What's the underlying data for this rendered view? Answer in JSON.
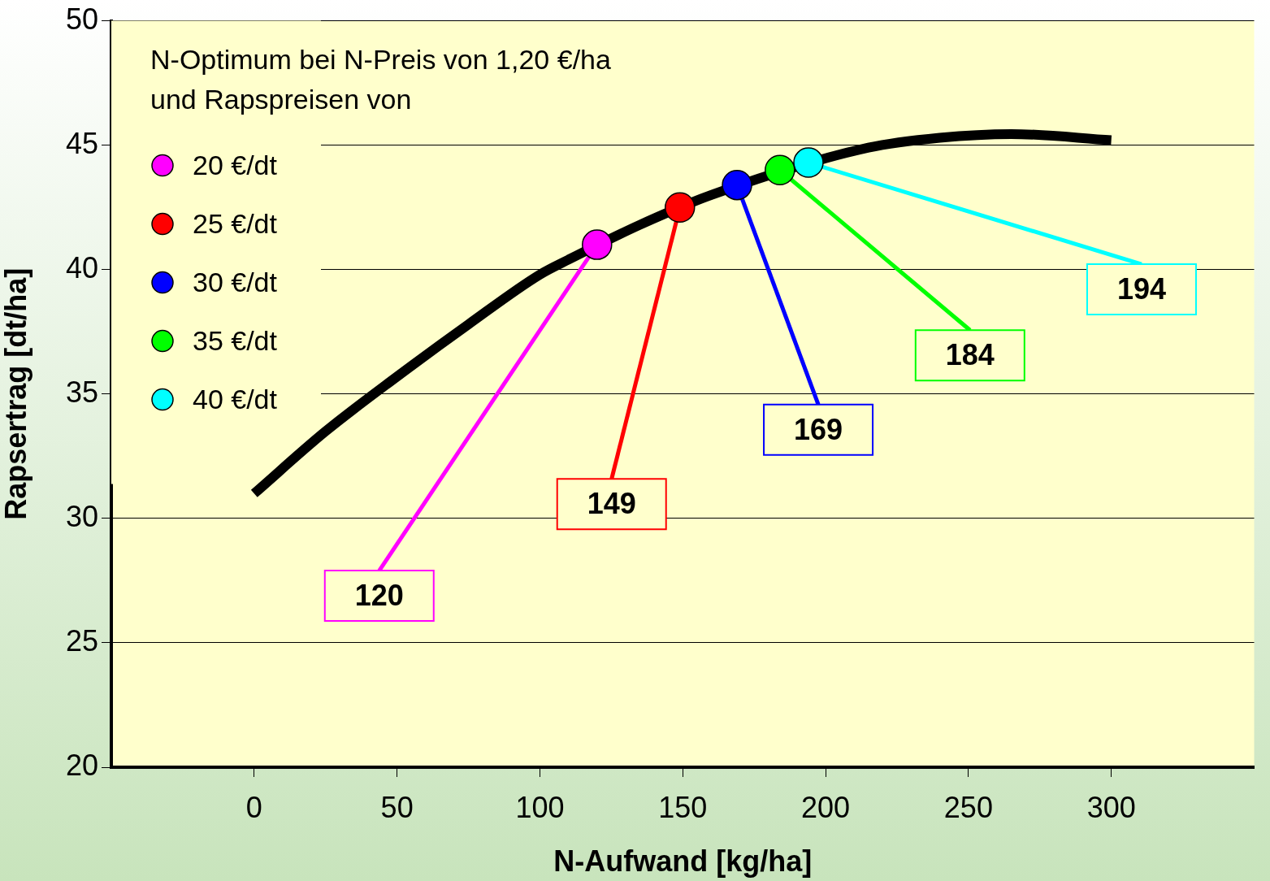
{
  "chart_data": {
    "type": "line",
    "xlabel": "N-Aufwand [kg/ha]",
    "ylabel": "Rapsertrag [dt/ha]",
    "legend_title": "N-Optimum bei N-Preis von 1,20 €/ha\nund Rapspreisen von",
    "xlim": [
      -50,
      350
    ],
    "xticks": [
      0,
      50,
      100,
      150,
      200,
      250,
      300
    ],
    "ylim": [
      20,
      50
    ],
    "yticks": [
      20,
      25,
      30,
      35,
      40,
      45,
      50
    ],
    "grid": "y",
    "legend": "top left",
    "marker": "circle",
    "series": [
      {
        "color": "#000000",
        "marker": "none",
        "x": [
          0,
          25,
          50,
          75,
          100,
          110,
          135,
          160,
          215,
          240,
          265,
          300
        ],
        "values": [
          31.0,
          33.5,
          35.7,
          37.8,
          39.8,
          40.4,
          41.8,
          43.0,
          44.9,
          45.3,
          45.45,
          45.2
        ]
      },
      {
        "type": "scatter",
        "name": "20 €/dt",
        "color": "#ff00ff",
        "x": [
          120
        ],
        "values": [
          41.0
        ]
      },
      {
        "type": "scatter",
        "name": "25 €/dt",
        "color": "#ff0000",
        "x": [
          149
        ],
        "values": [
          42.5
        ]
      },
      {
        "type": "scatter",
        "name": "30 €/dt",
        "color": "#0000ff",
        "x": [
          169
        ],
        "values": [
          43.4
        ]
      },
      {
        "type": "scatter",
        "name": "35 €/dt",
        "color": "#00ff00",
        "x": [
          184
        ],
        "values": [
          44.0
        ]
      },
      {
        "type": "scatter",
        "name": "40 €/dt",
        "color": "#00ffff",
        "x": [
          194
        ],
        "values": [
          44.3
        ]
      }
    ],
    "annotations": [
      {
        "text": "120",
        "x": 120,
        "y": 41.0
      },
      {
        "text": "149",
        "x": 149,
        "y": 42.5
      },
      {
        "text": "169",
        "x": 169,
        "y": 43.4
      },
      {
        "text": "184",
        "x": 184,
        "y": 44.0
      },
      {
        "text": "194",
        "x": 194,
        "y": 44.3
      }
    ]
  }
}
